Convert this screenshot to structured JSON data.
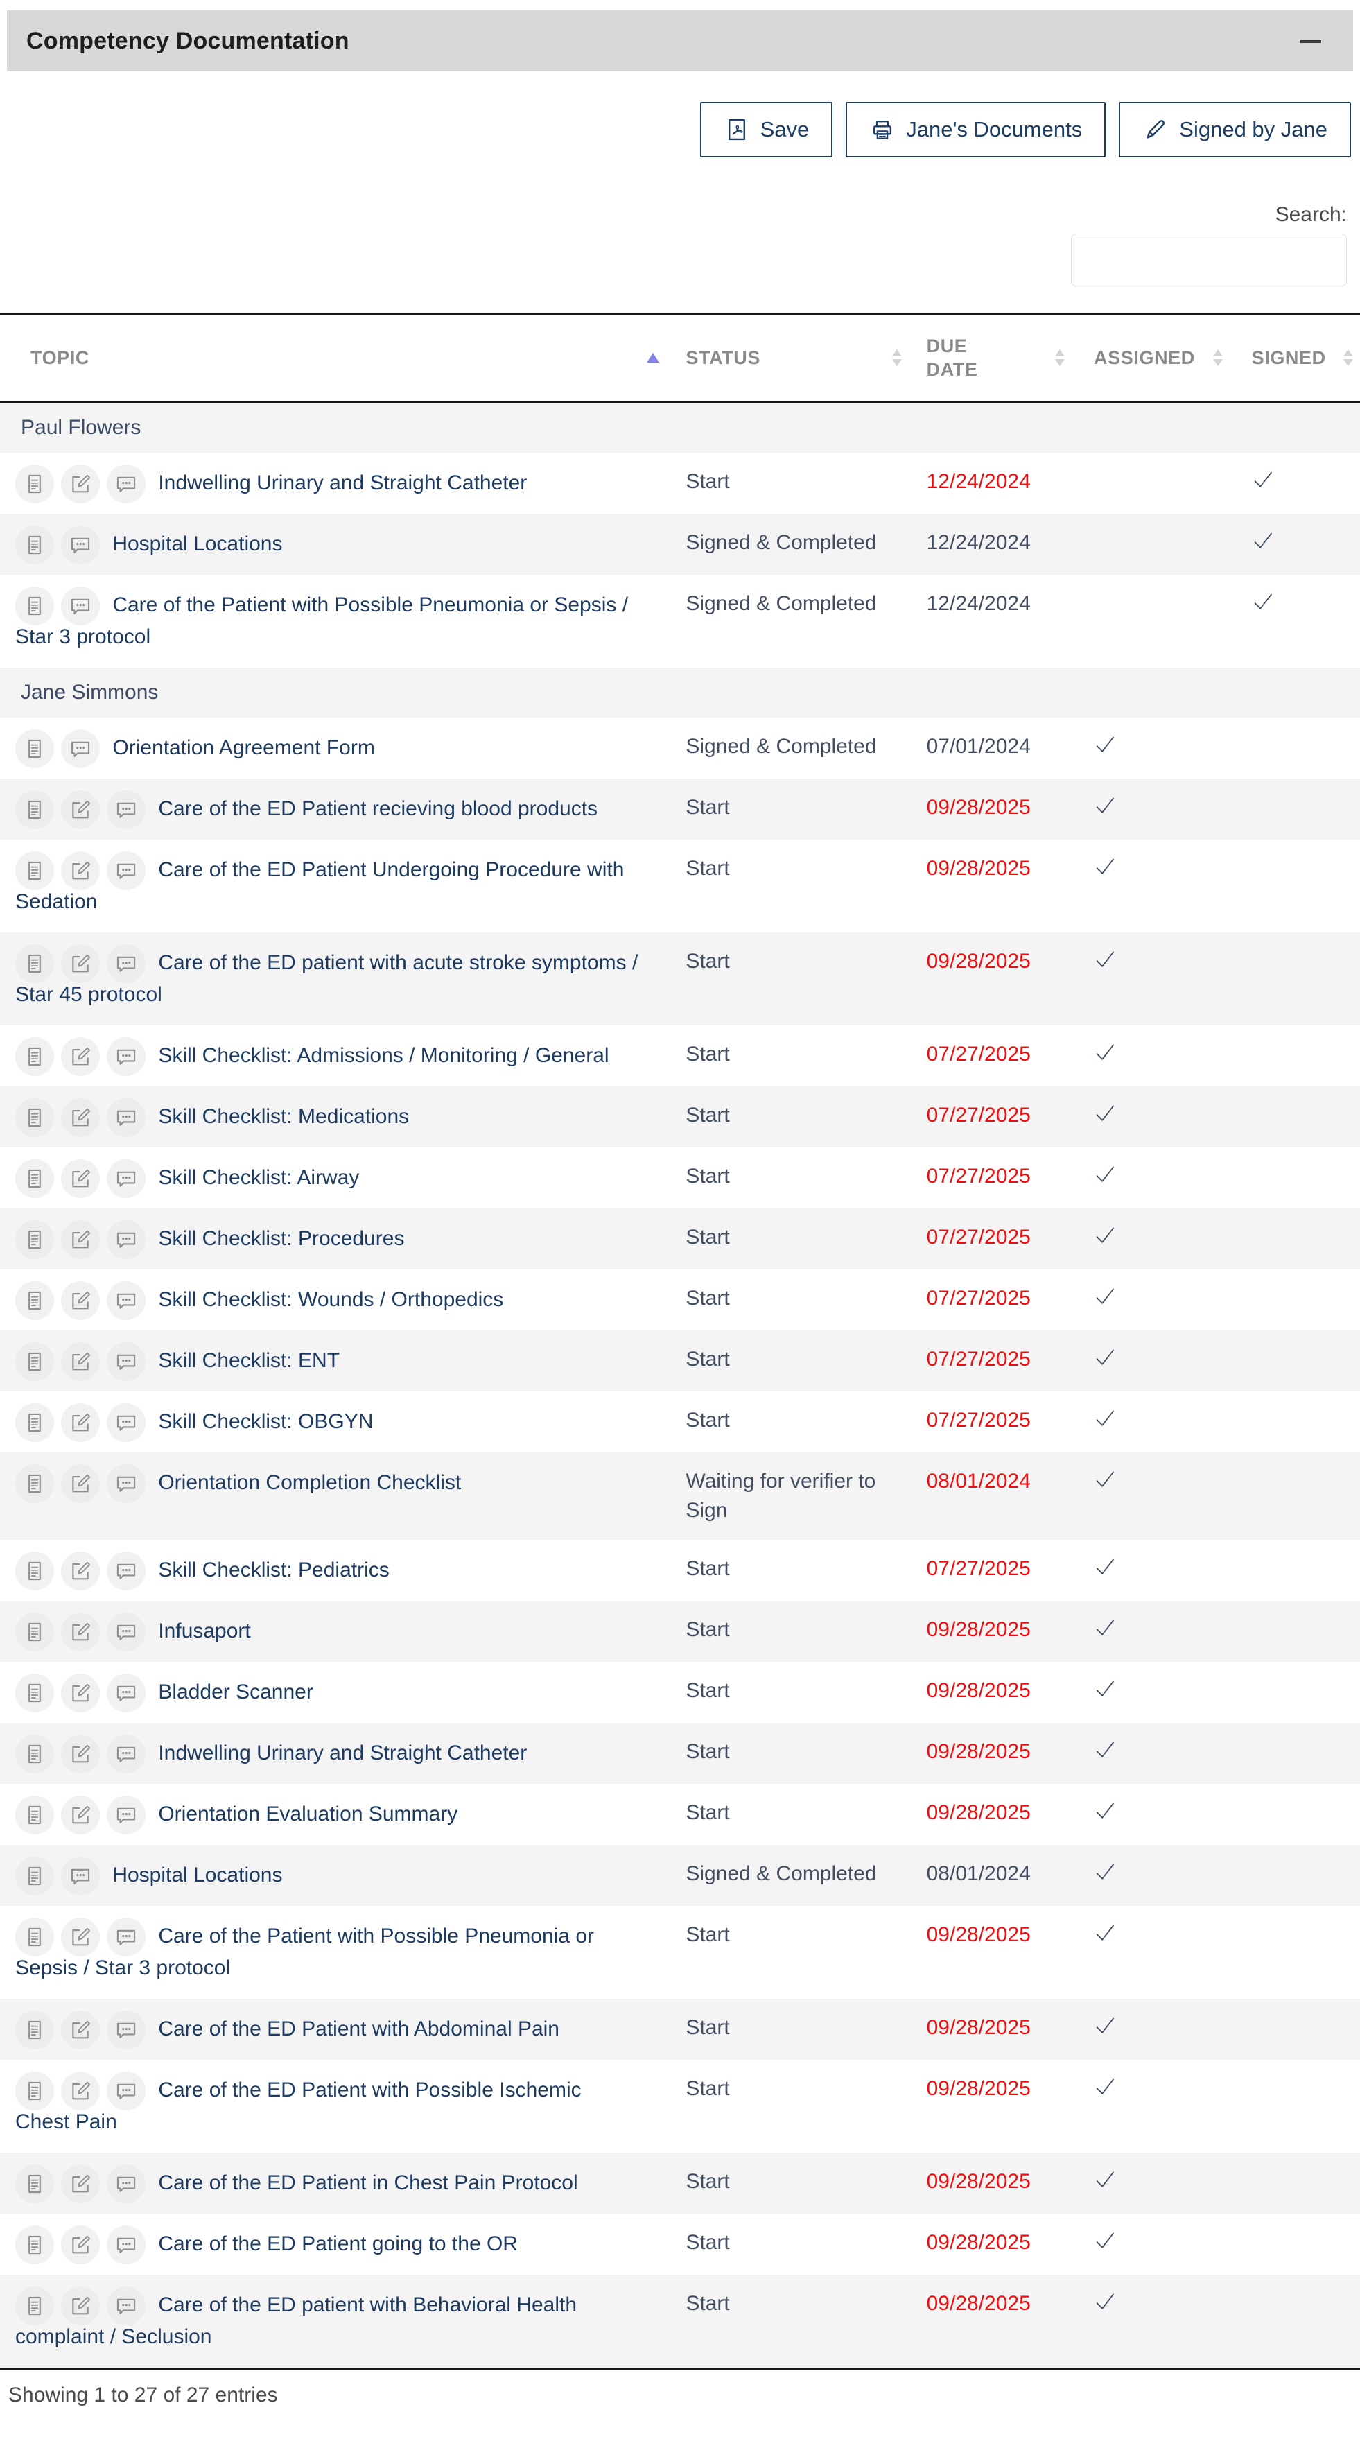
{
  "panel": {
    "title": "Competency Documentation"
  },
  "toolbar": {
    "buttons": [
      {
        "id": "save",
        "label": "Save",
        "icon": "pdf-file-icon"
      },
      {
        "id": "documents",
        "label": "Jane's Documents",
        "icon": "printer-icon"
      },
      {
        "id": "signed",
        "label": "Signed by Jane",
        "icon": "pen-icon"
      }
    ]
  },
  "search": {
    "label": "Search:",
    "value": "",
    "placeholder": ""
  },
  "colors": {
    "accent_navy": "#1e3d62",
    "topic_text": "#1d3a60",
    "overdue_red": "#f10d0d",
    "header_gray": "#8a8a8a",
    "stripe_bg": "#f4f4f5",
    "titlebar_bg": "#d8d8d8",
    "sort_active": "#8383ea"
  },
  "table": {
    "columns": [
      {
        "key": "topic",
        "label": "TOPIC",
        "sort": "asc"
      },
      {
        "key": "status",
        "label": "STATUS",
        "sort": "both"
      },
      {
        "key": "due",
        "label": "DUE DATE",
        "sort": "both"
      },
      {
        "key": "assigned",
        "label": "ASSIGNED",
        "sort": "both"
      },
      {
        "key": "signed",
        "label": "SIGNED",
        "sort": "both"
      }
    ],
    "groups": [
      {
        "name": "Paul Flowers",
        "rows": [
          {
            "topic": "Indwelling Urinary and Straight Catheter",
            "icons": [
              "doc",
              "edit",
              "comment"
            ],
            "status": "Start",
            "due": "12/24/2024",
            "overdue": true,
            "assigned": false,
            "signed": true
          },
          {
            "topic": "Hospital Locations",
            "icons": [
              "doc",
              "comment"
            ],
            "status": "Signed & Completed",
            "due": "12/24/2024",
            "overdue": false,
            "assigned": false,
            "signed": true
          },
          {
            "topic": "Care of the Patient with Possible Pneumonia or Sepsis / Star 3 protocol",
            "icons": [
              "doc",
              "comment"
            ],
            "status": "Signed & Completed",
            "due": "12/24/2024",
            "overdue": false,
            "assigned": false,
            "signed": true
          }
        ]
      },
      {
        "name": "Jane Simmons",
        "rows": [
          {
            "topic": "Orientation Agreement Form",
            "icons": [
              "doc",
              "comment"
            ],
            "status": "Signed & Completed",
            "due": "07/01/2024",
            "overdue": false,
            "assigned": true,
            "signed": false
          },
          {
            "topic": "Care of the ED Patient recieving blood products",
            "icons": [
              "doc",
              "edit",
              "comment"
            ],
            "status": "Start",
            "due": "09/28/2025",
            "overdue": true,
            "assigned": true,
            "signed": false
          },
          {
            "topic": "Care of the ED Patient Undergoing Procedure with Sedation",
            "icons": [
              "doc",
              "edit",
              "comment"
            ],
            "status": "Start",
            "due": "09/28/2025",
            "overdue": true,
            "assigned": true,
            "signed": false
          },
          {
            "topic": "Care of the ED patient with acute stroke symptoms / Star 45 protocol",
            "icons": [
              "doc",
              "edit",
              "comment"
            ],
            "status": "Start",
            "due": "09/28/2025",
            "overdue": true,
            "assigned": true,
            "signed": false
          },
          {
            "topic": "Skill Checklist: Admissions / Monitoring / General",
            "icons": [
              "doc",
              "edit",
              "comment"
            ],
            "status": "Start",
            "due": "07/27/2025",
            "overdue": true,
            "assigned": true,
            "signed": false
          },
          {
            "topic": "Skill Checklist: Medications",
            "icons": [
              "doc",
              "edit",
              "comment"
            ],
            "status": "Start",
            "due": "07/27/2025",
            "overdue": true,
            "assigned": true,
            "signed": false
          },
          {
            "topic": "Skill Checklist: Airway",
            "icons": [
              "doc",
              "edit",
              "comment"
            ],
            "status": "Start",
            "due": "07/27/2025",
            "overdue": true,
            "assigned": true,
            "signed": false
          },
          {
            "topic": "Skill Checklist: Procedures",
            "icons": [
              "doc",
              "edit",
              "comment"
            ],
            "status": "Start",
            "due": "07/27/2025",
            "overdue": true,
            "assigned": true,
            "signed": false
          },
          {
            "topic": "Skill Checklist: Wounds / Orthopedics",
            "icons": [
              "doc",
              "edit",
              "comment"
            ],
            "status": "Start",
            "due": "07/27/2025",
            "overdue": true,
            "assigned": true,
            "signed": false
          },
          {
            "topic": "Skill Checklist: ENT",
            "icons": [
              "doc",
              "edit",
              "comment"
            ],
            "status": "Start",
            "due": "07/27/2025",
            "overdue": true,
            "assigned": true,
            "signed": false
          },
          {
            "topic": "Skill Checklist: OBGYN",
            "icons": [
              "doc",
              "edit",
              "comment"
            ],
            "status": "Start",
            "due": "07/27/2025",
            "overdue": true,
            "assigned": true,
            "signed": false
          },
          {
            "topic": "Orientation Completion Checklist",
            "icons": [
              "doc",
              "edit",
              "comment"
            ],
            "status": "Waiting for verifier to Sign",
            "due": "08/01/2024",
            "overdue": true,
            "assigned": true,
            "signed": false
          },
          {
            "topic": "Skill Checklist: Pediatrics",
            "icons": [
              "doc",
              "edit",
              "comment"
            ],
            "status": "Start",
            "due": "07/27/2025",
            "overdue": true,
            "assigned": true,
            "signed": false
          },
          {
            "topic": "Infusaport",
            "icons": [
              "doc",
              "edit",
              "comment"
            ],
            "status": "Start",
            "due": "09/28/2025",
            "overdue": true,
            "assigned": true,
            "signed": false
          },
          {
            "topic": "Bladder Scanner",
            "icons": [
              "doc",
              "edit",
              "comment"
            ],
            "status": "Start",
            "due": "09/28/2025",
            "overdue": true,
            "assigned": true,
            "signed": false
          },
          {
            "topic": "Indwelling Urinary and Straight Catheter",
            "icons": [
              "doc",
              "edit",
              "comment"
            ],
            "status": "Start",
            "due": "09/28/2025",
            "overdue": true,
            "assigned": true,
            "signed": false
          },
          {
            "topic": "Orientation Evaluation Summary",
            "icons": [
              "doc",
              "edit",
              "comment"
            ],
            "status": "Start",
            "due": "09/28/2025",
            "overdue": true,
            "assigned": true,
            "signed": false
          },
          {
            "topic": "Hospital Locations",
            "icons": [
              "doc",
              "comment"
            ],
            "status": "Signed & Completed",
            "due": "08/01/2024",
            "overdue": false,
            "assigned": true,
            "signed": false
          },
          {
            "topic": "Care of the Patient with Possible Pneumonia or Sepsis / Star 3 protocol",
            "icons": [
              "doc",
              "edit",
              "comment"
            ],
            "status": "Start",
            "due": "09/28/2025",
            "overdue": true,
            "assigned": true,
            "signed": false
          },
          {
            "topic": "Care of the ED Patient with Abdominal Pain",
            "icons": [
              "doc",
              "edit",
              "comment"
            ],
            "status": "Start",
            "due": "09/28/2025",
            "overdue": true,
            "assigned": true,
            "signed": false
          },
          {
            "topic": "Care of the ED Patient with Possible Ischemic Chest Pain",
            "icons": [
              "doc",
              "edit",
              "comment"
            ],
            "status": "Start",
            "due": "09/28/2025",
            "overdue": true,
            "assigned": true,
            "signed": false
          },
          {
            "topic": "Care of the ED Patient in Chest Pain Protocol",
            "icons": [
              "doc",
              "edit",
              "comment"
            ],
            "status": "Start",
            "due": "09/28/2025",
            "overdue": true,
            "assigned": true,
            "signed": false
          },
          {
            "topic": "Care of the ED Patient going to the OR",
            "icons": [
              "doc",
              "edit",
              "comment"
            ],
            "status": "Start",
            "due": "09/28/2025",
            "overdue": true,
            "assigned": true,
            "signed": false
          },
          {
            "topic": "Care of the ED patient with Behavioral Health complaint / Seclusion",
            "icons": [
              "doc",
              "edit",
              "comment"
            ],
            "status": "Start",
            "due": "09/28/2025",
            "overdue": true,
            "assigned": true,
            "signed": false
          }
        ]
      }
    ],
    "footer": "Showing 1 to 27 of 27 entries"
  }
}
